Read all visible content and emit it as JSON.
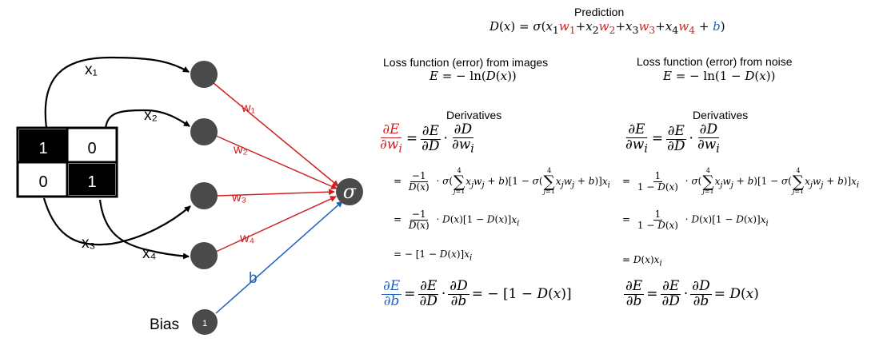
{
  "colors": {
    "red": "#cc2222",
    "blue": "#1f5fbf",
    "node": "#4a4a4a"
  },
  "pixels": [
    "1",
    "0",
    "0",
    "1"
  ],
  "inputs": [
    "x₁",
    "x₂",
    "x₃",
    "x₄"
  ],
  "weights": [
    "w₁",
    "w₂",
    "w₃",
    "w₄"
  ],
  "bias": {
    "label": "Bias",
    "node_value": "1",
    "edge_label": "b"
  },
  "sigma": "σ",
  "prediction": {
    "title": "Prediction"
  },
  "loss_images": {
    "title": "Loss function (error) from images"
  },
  "loss_noise": {
    "title": "Loss function (error) from noise"
  },
  "derivatives": {
    "left_title": "Derivatives",
    "right_title": "Derivatives"
  }
}
